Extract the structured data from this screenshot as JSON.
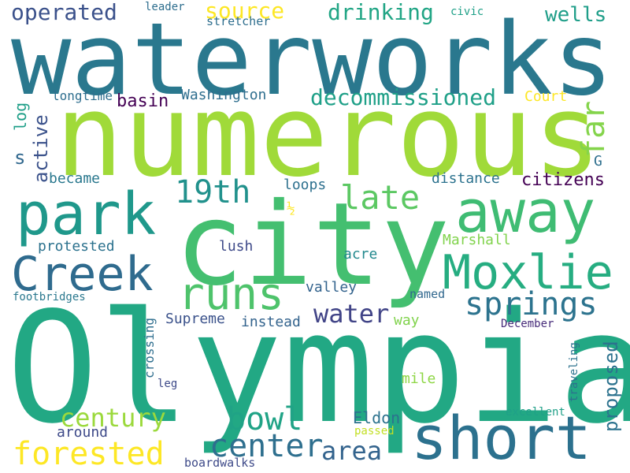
{
  "words": [
    {
      "text": "waterworks",
      "color": "#2a788e"
    },
    {
      "text": "numerous",
      "color": "#a0da39"
    },
    {
      "text": "city",
      "color": "#44bf70"
    },
    {
      "text": "Olympia",
      "color": "#22a884"
    },
    {
      "text": "park",
      "color": "#1f988b"
    },
    {
      "text": "away",
      "color": "#3fbc73"
    },
    {
      "text": "short",
      "color": "#2c718e"
    },
    {
      "text": "Creek",
      "color": "#2f6b8e"
    },
    {
      "text": "Moxlie",
      "color": "#26ad81"
    },
    {
      "text": "runs",
      "color": "#4ec36b"
    },
    {
      "text": "springs",
      "color": "#2c738e"
    },
    {
      "text": "late",
      "color": "#5cc863"
    },
    {
      "text": "19th",
      "color": "#21918c"
    },
    {
      "text": "forested",
      "color": "#fde725"
    },
    {
      "text": "bowl",
      "color": "#20a386"
    },
    {
      "text": "center",
      "color": "#2e6f8e"
    },
    {
      "text": "area",
      "color": "#33638d"
    },
    {
      "text": "century",
      "color": "#9bd93c"
    },
    {
      "text": "water",
      "color": "#414487"
    },
    {
      "text": "far",
      "color": "#84d44b"
    },
    {
      "text": "drinking",
      "color": "#21a585"
    },
    {
      "text": "decommissioned",
      "color": "#1fa088"
    },
    {
      "text": "operated",
      "color": "#3b518b"
    },
    {
      "text": "source",
      "color": "#fde725"
    },
    {
      "text": "wells",
      "color": "#1f9e89"
    },
    {
      "text": "basin",
      "color": "#440154"
    },
    {
      "text": "citizens",
      "color": "#440154"
    },
    {
      "text": "proposed",
      "color": "#2c728e"
    },
    {
      "text": "Washington",
      "color": "#2e6e8e"
    },
    {
      "text": "Court",
      "color": "#fde725"
    },
    {
      "text": "longtime",
      "color": "#2e6e8e"
    },
    {
      "text": "distance",
      "color": "#2c728e"
    },
    {
      "text": "loops",
      "color": "#2d708e"
    },
    {
      "text": "active",
      "color": "#3b528b"
    },
    {
      "text": "log",
      "color": "#1f9f88"
    },
    {
      "text": "s",
      "color": "#31688e"
    },
    {
      "text": "became",
      "color": "#2a788e"
    },
    {
      "text": "G",
      "color": "#2e6f8e"
    },
    {
      "text": "protested",
      "color": "#2c728e"
    },
    {
      "text": "Marshall",
      "color": "#81d34d"
    },
    {
      "text": "lush",
      "color": "#3e4a89"
    },
    {
      "text": "acre",
      "color": "#23898e"
    },
    {
      "text": "valley",
      "color": "#33638d"
    },
    {
      "text": "footbridges",
      "color": "#2a788e"
    },
    {
      "text": "named",
      "color": "#31688e"
    },
    {
      "text": "Supreme",
      "color": "#3b528b"
    },
    {
      "text": "instead",
      "color": "#33638d"
    },
    {
      "text": "way",
      "color": "#81d34d"
    },
    {
      "text": "December",
      "color": "#472c7a"
    },
    {
      "text": "crossing",
      "color": "#2e6e8e"
    },
    {
      "text": "mile",
      "color": "#8ed645"
    },
    {
      "text": "leg",
      "color": "#3e4a89"
    },
    {
      "text": "traveling",
      "color": "#2c728e"
    },
    {
      "text": "Eldon",
      "color": "#2c728e"
    },
    {
      "text": "excellent",
      "color": "#1fa088"
    },
    {
      "text": "around",
      "color": "#3e4a89"
    },
    {
      "text": "passed",
      "color": "#c2df23"
    },
    {
      "text": "boardwalks",
      "color": "#3e4a89"
    },
    {
      "text": "leader",
      "color": "#2e6e8e"
    },
    {
      "text": "civic",
      "color": "#1fa088"
    },
    {
      "text": "stretcher",
      "color": "#2e6e8e"
    },
    {
      "text": "½",
      "color": "#fde725"
    }
  ]
}
